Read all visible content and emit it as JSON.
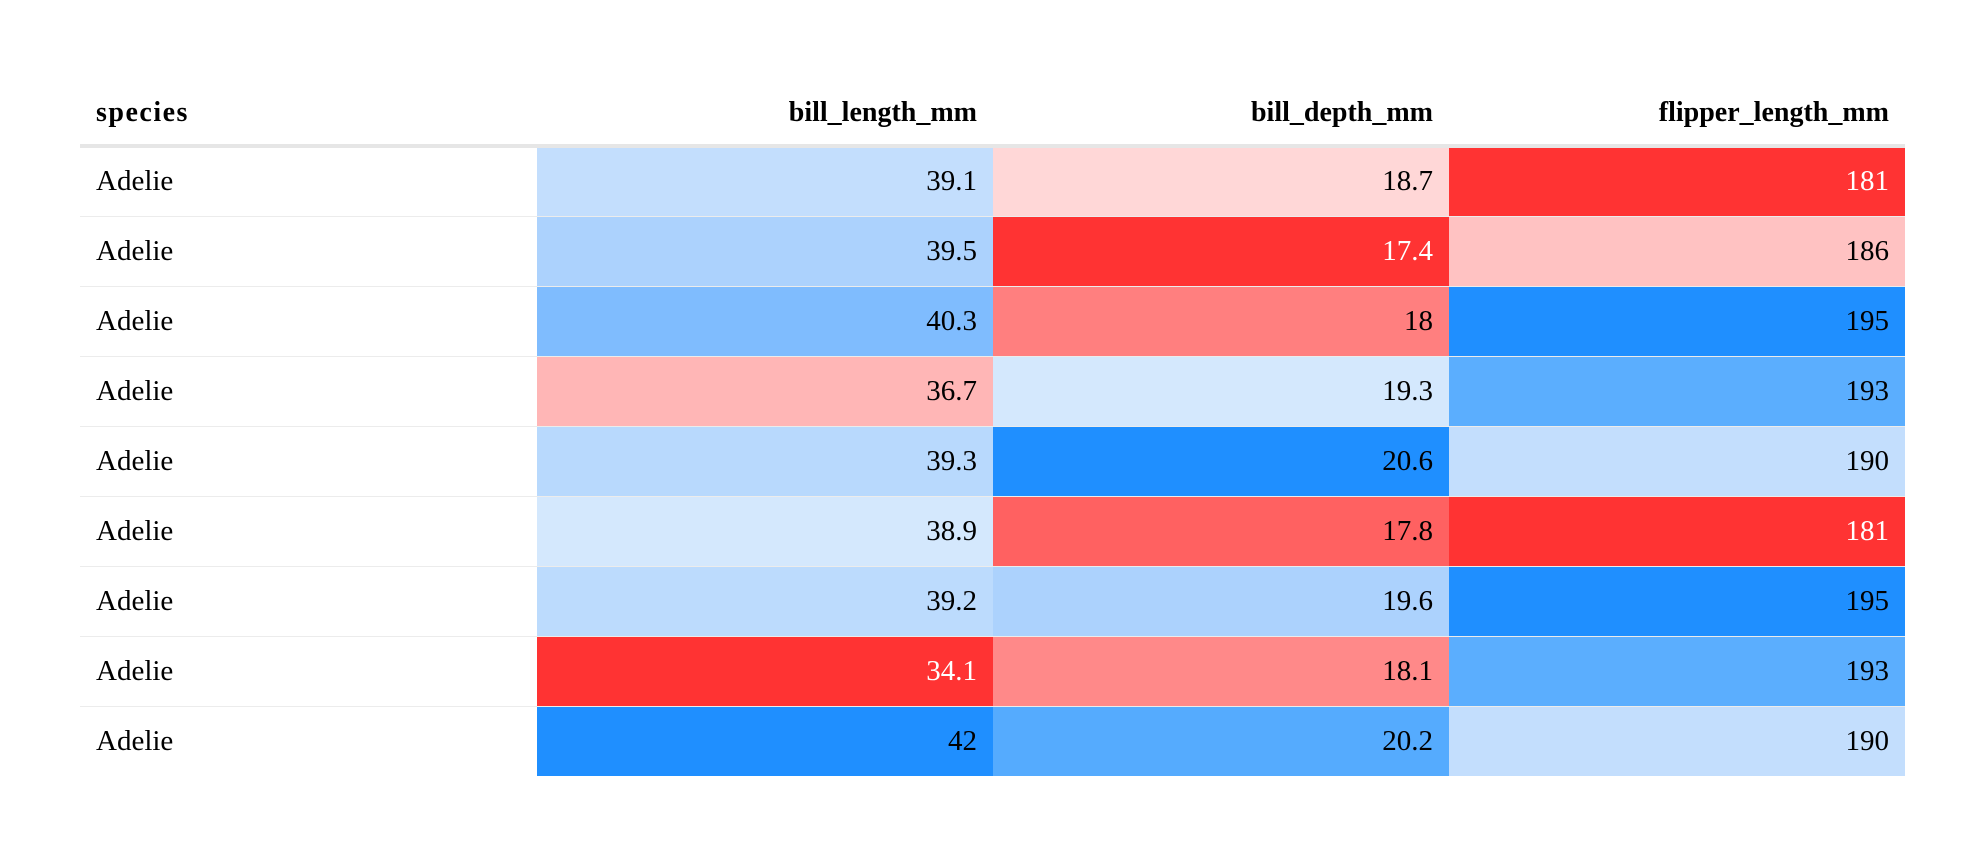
{
  "chart_data": {
    "type": "table",
    "columns": [
      "species",
      "bill_length_mm",
      "bill_depth_mm",
      "flipper_length_mm"
    ],
    "rows": [
      {
        "cells": [
          {
            "text": "Adelie"
          },
          {
            "text": "39.1",
            "bg": "#c3defd",
            "fg": "#000000"
          },
          {
            "text": "18.7",
            "bg": "#ffd7d7",
            "fg": "#000000"
          },
          {
            "text": "181",
            "bg": "#ff3333",
            "fg": "#ffffff"
          }
        ]
      },
      {
        "cells": [
          {
            "text": "Adelie"
          },
          {
            "text": "39.5",
            "bg": "#acd2fd",
            "fg": "#000000"
          },
          {
            "text": "17.4",
            "bg": "#ff3333",
            "fg": "#ffffff"
          },
          {
            "text": "186",
            "bg": "#ffc2c2",
            "fg": "#000000"
          }
        ]
      },
      {
        "cells": [
          {
            "text": "Adelie"
          },
          {
            "text": "40.3",
            "bg": "#7fbcfe",
            "fg": "#000000"
          },
          {
            "text": "18",
            "bg": "#ff7f7f",
            "fg": "#000000"
          },
          {
            "text": "195",
            "bg": "#1f8fff",
            "fg": "#000000"
          }
        ]
      },
      {
        "cells": [
          {
            "text": "Adelie"
          },
          {
            "text": "36.7",
            "bg": "#ffb6b6",
            "fg": "#000000"
          },
          {
            "text": "19.3",
            "bg": "#d4e8fd",
            "fg": "#000000"
          },
          {
            "text": "193",
            "bg": "#5baefe",
            "fg": "#000000"
          }
        ]
      },
      {
        "cells": [
          {
            "text": "Adelie"
          },
          {
            "text": "39.3",
            "bg": "#b8d9fd",
            "fg": "#000000"
          },
          {
            "text": "20.6",
            "bg": "#1f8fff",
            "fg": "#000000"
          },
          {
            "text": "190",
            "bg": "#c3defd",
            "fg": "#000000"
          }
        ]
      },
      {
        "cells": [
          {
            "text": "Adelie"
          },
          {
            "text": "38.9",
            "bg": "#d4e8fd",
            "fg": "#000000"
          },
          {
            "text": "17.8",
            "bg": "#ff6161",
            "fg": "#000000"
          },
          {
            "text": "181",
            "bg": "#ff3333",
            "fg": "#ffffff"
          }
        ]
      },
      {
        "cells": [
          {
            "text": "Adelie"
          },
          {
            "text": "39.2",
            "bg": "#bcdbfd",
            "fg": "#000000"
          },
          {
            "text": "19.6",
            "bg": "#acd2fd",
            "fg": "#000000"
          },
          {
            "text": "195",
            "bg": "#1f8fff",
            "fg": "#000000"
          }
        ]
      },
      {
        "cells": [
          {
            "text": "Adelie"
          },
          {
            "text": "34.1",
            "bg": "#ff3333",
            "fg": "#ffffff"
          },
          {
            "text": "18.1",
            "bg": "#ff8989",
            "fg": "#000000"
          },
          {
            "text": "193",
            "bg": "#5baefe",
            "fg": "#000000"
          }
        ]
      },
      {
        "cells": [
          {
            "text": "Adelie"
          },
          {
            "text": "42",
            "bg": "#1f8fff",
            "fg": "#000000"
          },
          {
            "text": "20.2",
            "bg": "#55abfe",
            "fg": "#000000"
          },
          {
            "text": "190",
            "bg": "#c3defd",
            "fg": "#000000"
          }
        ]
      }
    ]
  }
}
